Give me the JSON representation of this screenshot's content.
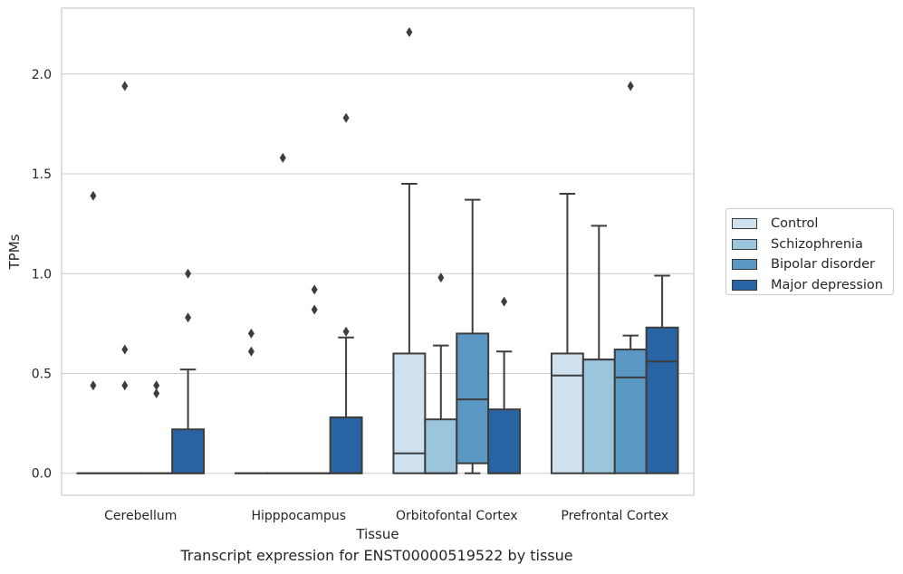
{
  "chart_data": {
    "type": "boxplot",
    "caption": "Transcript expression for ENST00000519522 by tissue",
    "xlabel": "Tissue",
    "ylabel": "TPMs",
    "ylim": [
      -0.11,
      2.33
    ],
    "yticks": [
      0.0,
      0.5,
      1.0,
      1.5,
      2.0
    ],
    "ytick_labels": [
      "0.0",
      "0.5",
      "1.0",
      "1.5",
      "2.0"
    ],
    "grid": "horizontal",
    "legend_position": "right",
    "categories": [
      "Cerebellum",
      "Hipppocampus",
      "Orbitofontal Cortex",
      "Prefrontal Cortex"
    ],
    "series": [
      {
        "name": "Control",
        "color": "#cfe0ef",
        "boxes": [
          {
            "q1": 0,
            "median": 0,
            "q3": 0,
            "whisker_low": 0,
            "whisker_high": 0,
            "outliers": [
              1.39,
              0.44
            ]
          },
          {
            "q1": 0,
            "median": 0,
            "q3": 0,
            "whisker_low": 0,
            "whisker_high": 0,
            "outliers": [
              0.7,
              0.61
            ]
          },
          {
            "q1": 0,
            "median": 0.1,
            "q3": 0.6,
            "whisker_low": 0,
            "whisker_high": 1.45,
            "outliers": [
              2.21
            ]
          },
          {
            "q1": 0,
            "median": 0.49,
            "q3": 0.6,
            "whisker_low": 0,
            "whisker_high": 1.4,
            "outliers": []
          }
        ]
      },
      {
        "name": "Schizophrenia",
        "color": "#9ac5dc",
        "boxes": [
          {
            "q1": 0,
            "median": 0,
            "q3": 0,
            "whisker_low": 0,
            "whisker_high": 0,
            "outliers": [
              1.94,
              0.62,
              0.44
            ]
          },
          {
            "q1": 0,
            "median": 0,
            "q3": 0,
            "whisker_low": 0,
            "whisker_high": 0,
            "outliers": [
              1.58
            ]
          },
          {
            "q1": 0,
            "median": 0,
            "q3": 0.27,
            "whisker_low": 0,
            "whisker_high": 0.64,
            "outliers": [
              0.98
            ]
          },
          {
            "q1": 0,
            "median": 0.57,
            "q3": 0.57,
            "whisker_low": 0,
            "whisker_high": 1.24,
            "outliers": []
          }
        ]
      },
      {
        "name": "Bipolar disorder",
        "color": "#5a97c2",
        "boxes": [
          {
            "q1": 0,
            "median": 0,
            "q3": 0,
            "whisker_low": 0,
            "whisker_high": 0,
            "outliers": [
              0.44,
              0.4
            ]
          },
          {
            "q1": 0,
            "median": 0,
            "q3": 0,
            "whisker_low": 0,
            "whisker_high": 0,
            "outliers": [
              0.92,
              0.82
            ]
          },
          {
            "q1": 0.05,
            "median": 0.37,
            "q3": 0.7,
            "whisker_low": 0,
            "whisker_high": 1.37,
            "outliers": []
          },
          {
            "q1": 0,
            "median": 0.48,
            "q3": 0.62,
            "whisker_low": 0,
            "whisker_high": 0.69,
            "outliers": [
              1.94
            ]
          }
        ]
      },
      {
        "name": "Major depression",
        "color": "#2863a3",
        "boxes": [
          {
            "q1": 0,
            "median": 0,
            "q3": 0.22,
            "whisker_low": 0,
            "whisker_high": 0.52,
            "outliers": [
              1.0,
              0.78
            ]
          },
          {
            "q1": 0,
            "median": 0,
            "q3": 0.28,
            "whisker_low": 0,
            "whisker_high": 0.68,
            "outliers": [
              1.78,
              0.71
            ]
          },
          {
            "q1": 0,
            "median": 0,
            "q3": 0.32,
            "whisker_low": 0,
            "whisker_high": 0.61,
            "outliers": [
              0.86
            ]
          },
          {
            "q1": 0,
            "median": 0.56,
            "q3": 0.73,
            "whisker_low": 0,
            "whisker_high": 0.99,
            "outliers": []
          }
        ]
      }
    ]
  }
}
